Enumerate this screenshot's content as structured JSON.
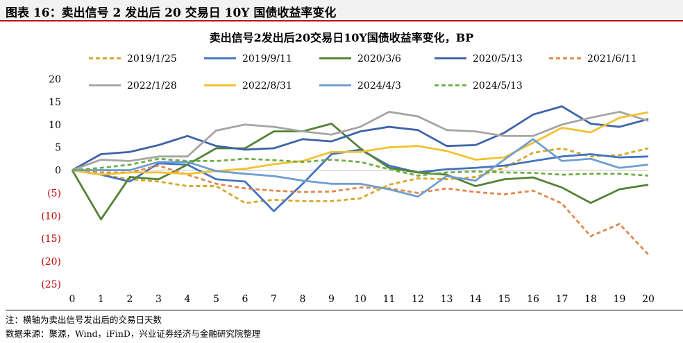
{
  "figure_title": "图表 16：卖出信号 2 发出后 20 交易日 10Y 国债收益率变化",
  "notes": [
    "注：横轴为卖出信号发出后的交易日天数",
    "数据来源：聚源，Wind，iFinD，兴业证券经济与金融研究院整理"
  ],
  "chart_data": {
    "type": "line",
    "title": "卖出信号2发出后20交易日10Y国债收益率变化，BP",
    "x": [
      0,
      1,
      2,
      3,
      4,
      5,
      6,
      7,
      8,
      9,
      10,
      11,
      12,
      13,
      14,
      15,
      16,
      17,
      18,
      19,
      20
    ],
    "xlabel": "",
    "ylabel": "",
    "ylim": [
      -25,
      20
    ],
    "yticks": [
      20,
      15,
      10,
      5,
      0,
      -5,
      -10,
      -15,
      -20,
      -25
    ],
    "ytick_labels": [
      "20",
      "15",
      "10",
      "5",
      "0",
      "(5)",
      "(10)",
      "(15)",
      "(20)",
      "(25)"
    ],
    "negative_tick_color": "#c00000",
    "legend_position": "top",
    "grid": false,
    "series": [
      {
        "name": "2019/1/25",
        "color": "#d4a827",
        "dash": true,
        "values": [
          0,
          -1,
          -2,
          -2.5,
          -3.5,
          -3.5,
          -7.2,
          -6.5,
          -6.8,
          -6.8,
          -6.2,
          -3.2,
          -1.8,
          -2,
          -1.5,
          0.5,
          3.8,
          4.8,
          3,
          3.3,
          4.8
        ]
      },
      {
        "name": "2019/9/11",
        "color": "#4472c4",
        "dash": false,
        "values": [
          0,
          -1,
          -2.5,
          1.5,
          1.2,
          -2,
          -2.5,
          -9,
          -3,
          3.5,
          4.5,
          1,
          -0.5,
          0.2,
          0.5,
          1,
          2,
          3,
          3.5,
          2.8,
          3
        ]
      },
      {
        "name": "2020/3/6",
        "color": "#548235",
        "dash": false,
        "values": [
          0,
          -10.8,
          -1.5,
          -2,
          1.2,
          4.8,
          4.8,
          8.5,
          8.5,
          10.2,
          4.8,
          0.5,
          -0.5,
          -1,
          -3.5,
          -2,
          -1.6,
          -3.8,
          -7.2,
          -4.2,
          -3.2
        ]
      },
      {
        "name": "2020/5/13",
        "color": "#3d63a8",
        "dash": false,
        "values": [
          0,
          3.5,
          4,
          5.5,
          7.5,
          5.3,
          4.5,
          4.8,
          6.8,
          6.3,
          8.5,
          9.5,
          8.8,
          5.3,
          5.5,
          8.2,
          12.2,
          14,
          10.2,
          9.5,
          11.2
        ]
      },
      {
        "name": "2021/6/11",
        "color": "#e0894c",
        "dash": true,
        "values": [
          0,
          -0.5,
          -0.5,
          1,
          -1,
          -3,
          -4,
          -4.5,
          -4.8,
          -4.7,
          -3.8,
          -4,
          -5,
          -4,
          -4.8,
          -5.3,
          -4.5,
          -7.3,
          -14.5,
          -11.8,
          -18.5
        ]
      },
      {
        "name": "2022/1/28",
        "color": "#a5a5a5",
        "dash": false,
        "values": [
          0,
          2.3,
          2,
          3,
          3,
          8.7,
          10,
          9.5,
          8.5,
          7.8,
          9.5,
          12.8,
          11.8,
          8.8,
          8.5,
          7.5,
          7.5,
          10,
          11.5,
          12.8,
          10.8
        ]
      },
      {
        "name": "2022/8/31",
        "color": "#f2c12e",
        "dash": false,
        "values": [
          0,
          -1,
          -0.5,
          -0.5,
          -0.8,
          -0.2,
          0.3,
          1.3,
          2,
          4,
          4,
          5,
          5.3,
          4.2,
          2.3,
          2.8,
          6,
          9.3,
          8.3,
          11.5,
          12.7
        ]
      },
      {
        "name": "2024/4/3",
        "color": "#6f9ed0",
        "dash": false,
        "values": [
          0,
          0,
          0,
          1.8,
          1.8,
          -0.2,
          -0.8,
          -1.3,
          -2.3,
          -3,
          -3,
          -4.2,
          -5.8,
          -1.3,
          -2.3,
          2.3,
          6.8,
          2,
          2.5,
          0.5,
          1.2
        ]
      },
      {
        "name": "2024/5/13",
        "color": "#70ad47",
        "dash": true,
        "values": [
          0,
          0.5,
          1.2,
          2.5,
          2,
          2,
          2.5,
          2.2,
          1.8,
          2.3,
          1.8,
          0.2,
          -1.2,
          -0.5,
          -0.3,
          -0.5,
          -0.6,
          -1,
          -0.8,
          -0.8,
          -1.2
        ]
      }
    ]
  }
}
